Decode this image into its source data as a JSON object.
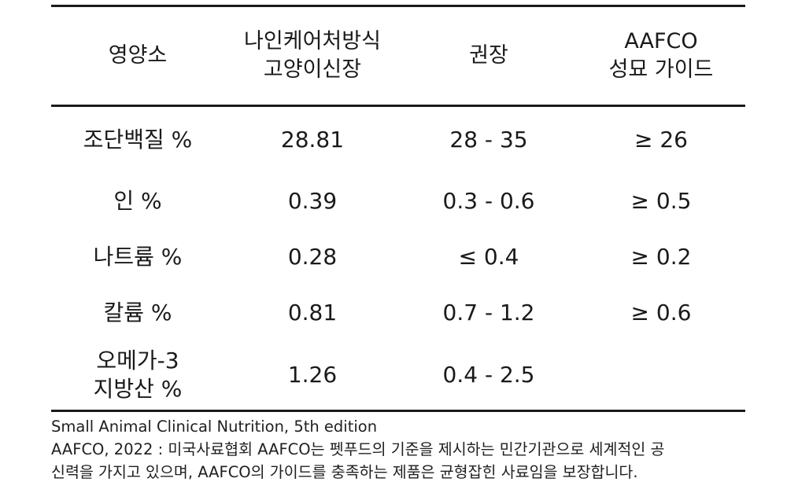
{
  "table": {
    "header": {
      "col1": [
        "영양소"
      ],
      "col2": [
        "나인케어처방식",
        "고양이신장"
      ],
      "col3": [
        "권장"
      ],
      "col4": [
        "AAFCO",
        "성묘 가이드"
      ]
    },
    "rows": [
      {
        "nutrient": [
          "조단백질 %"
        ],
        "product": "28.81",
        "recommended": "28 - 35",
        "aafco": "≥ 26"
      },
      {
        "nutrient": [
          "인 %"
        ],
        "product": "0.39",
        "recommended": "0.3 - 0.6",
        "aafco": "≥ 0.5"
      },
      {
        "nutrient": [
          "나트륨 %"
        ],
        "product": "0.28",
        "recommended": "≤ 0.4",
        "aafco": "≥ 0.2"
      },
      {
        "nutrient": [
          "칼륨 %"
        ],
        "product": "0.81",
        "recommended": "0.7 - 1.2",
        "aafco": "≥ 0.6"
      },
      {
        "nutrient": [
          "오메가-3",
          "지방산 %"
        ],
        "product": "1.26",
        "recommended": "0.4 - 2.5",
        "aafco": ""
      }
    ]
  },
  "footer": {
    "source": "Small Animal Clinical Nutrition, 5th edition",
    "note_line1": "AAFCO, 2022 : 미국사료협회 AAFCO는 펫푸드의 기준을 제시하는 민간기관으로 세계적인 공",
    "note_line2": "신력을 가지고 있으며, AAFCO의 가이드를 충족하는 제품은 균형잡힌 사료임을 보장합니다."
  }
}
